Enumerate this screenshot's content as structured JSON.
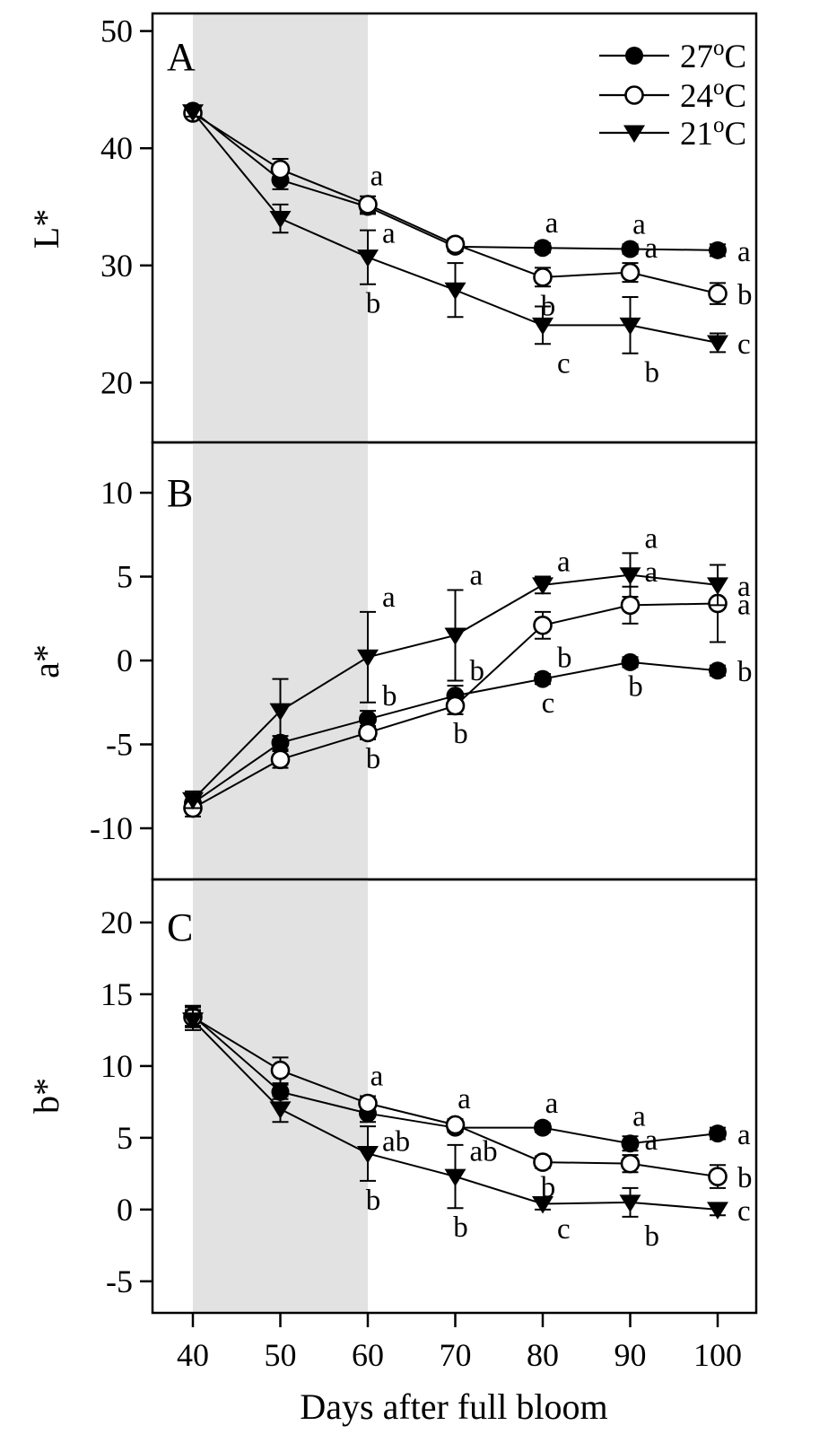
{
  "chart_data": {
    "type": "line",
    "title": "",
    "xlabel": "Days after full bloom",
    "x": [
      40,
      50,
      60,
      70,
      80,
      90,
      100
    ],
    "x_ticks": [
      40,
      50,
      60,
      70,
      80,
      90,
      100
    ],
    "grid": false,
    "shaded_x_band": {
      "from": 40,
      "to": 60,
      "color": "#e2e2e2"
    },
    "legend": {
      "position": "top-right of panel A",
      "entries": [
        "27°C",
        "24°C",
        "21°C"
      ]
    },
    "marker_color": "#000000",
    "panels": [
      {
        "label": "A",
        "ylabel": "L*",
        "yticks": [
          50,
          40,
          30,
          20
        ],
        "ylim": [
          14.9,
          51.5
        ],
        "series": [
          {
            "name": "27°C",
            "marker": "filled-circle",
            "values": [
              43.2,
              37.3,
              35.0,
              31.6,
              31.5,
              31.4,
              31.3
            ],
            "errors": [
              0.4,
              0.8,
              0.6,
              0.4,
              0.4,
              0.4,
              0.5
            ],
            "letters": [
              null,
              null,
              [
                "a",
                "below-right"
              ],
              null,
              [
                "a",
                "above"
              ],
              [
                "a",
                "above"
              ],
              [
                "a",
                "right"
              ]
            ]
          },
          {
            "name": "24°C",
            "marker": "open-circle",
            "values": [
              43.0,
              38.2,
              35.2,
              31.8,
              29.0,
              29.4,
              27.6
            ],
            "errors": [
              0.4,
              0.9,
              0.7,
              0.5,
              0.8,
              0.8,
              0.9
            ],
            "letters": [
              null,
              null,
              [
                "a",
                "above"
              ],
              null,
              [
                "b",
                "below"
              ],
              [
                "a",
                "above-right"
              ],
              [
                "b",
                "right"
              ]
            ]
          },
          {
            "name": "21°C",
            "marker": "filled-triangle-down",
            "values": [
              43.1,
              34.0,
              30.7,
              27.9,
              24.9,
              24.9,
              23.4
            ],
            "errors": [
              0.4,
              1.2,
              2.3,
              2.3,
              1.6,
              2.4,
              0.8
            ],
            "letters": [
              null,
              null,
              [
                "b",
                "below"
              ],
              null,
              [
                "c",
                "below-right"
              ],
              [
                "b",
                "below-right"
              ],
              [
                "c",
                "right"
              ]
            ]
          }
        ]
      },
      {
        "label": "B",
        "ylabel": "a*",
        "yticks": [
          10,
          5,
          0,
          -5,
          -10
        ],
        "ylim": [
          -13.05,
          13.0
        ],
        "series": [
          {
            "name": "27°C",
            "marker": "filled-circle",
            "values": [
              -8.5,
              -4.9,
              -3.5,
              -2.1,
              -1.1,
              -0.1,
              -0.6
            ],
            "errors": [
              0.4,
              0.4,
              0.5,
              0.6,
              0.3,
              0.3,
              0.3
            ],
            "letters": [
              null,
              null,
              [
                "b",
                "above-right"
              ],
              [
                "b",
                "above-right"
              ],
              [
                "c",
                "below"
              ],
              [
                "b",
                "below"
              ],
              [
                "b",
                "right"
              ]
            ]
          },
          {
            "name": "24°C",
            "marker": "open-circle",
            "values": [
              -8.8,
              -5.9,
              -4.3,
              -2.7,
              2.1,
              3.3,
              3.4
            ],
            "errors": [
              0.5,
              0.5,
              0.4,
              0.5,
              0.8,
              1.1,
              2.3
            ],
            "letters": [
              null,
              null,
              [
                "b",
                "below"
              ],
              [
                "b",
                "below"
              ],
              [
                "b",
                "below-right"
              ],
              [
                "a",
                "above-right"
              ],
              [
                "a",
                "right"
              ]
            ]
          },
          {
            "name": "21°C",
            "marker": "filled-triangle-down",
            "values": [
              -8.3,
              -3.0,
              0.2,
              1.5,
              4.5,
              5.1,
              4.5
            ],
            "errors": [
              0.5,
              1.9,
              2.7,
              2.7,
              0.5,
              1.3,
              1.2
            ],
            "letters": [
              null,
              null,
              [
                "a",
                "above-right"
              ],
              [
                "a",
                "above-right"
              ],
              [
                "a",
                "above-right"
              ],
              [
                "a",
                "above-right"
              ],
              [
                "a",
                "right"
              ]
            ]
          }
        ]
      },
      {
        "label": "C",
        "ylabel": "b*",
        "yticks": [
          20,
          15,
          10,
          5,
          0,
          -5
        ],
        "ylim": [
          -7.2,
          23.0
        ],
        "series": [
          {
            "name": "27°C",
            "marker": "filled-circle",
            "values": [
              13.5,
              8.2,
              6.7,
              5.7,
              5.7,
              4.6,
              5.3
            ],
            "errors": [
              0.7,
              0.5,
              0.6,
              0.3,
              0.3,
              0.5,
              0.4
            ],
            "letters": [
              null,
              null,
              [
                "ab",
                "below-right"
              ],
              [
                "ab",
                "below-right"
              ],
              [
                "a",
                "above"
              ],
              [
                "a",
                "above"
              ],
              [
                "a",
                "right"
              ]
            ]
          },
          {
            "name": "24°C",
            "marker": "open-circle",
            "values": [
              13.4,
              9.7,
              7.4,
              5.9,
              3.3,
              3.2,
              2.3
            ],
            "errors": [
              0.7,
              0.9,
              0.5,
              0.4,
              0.4,
              0.6,
              0.8
            ],
            "letters": [
              null,
              null,
              [
                "a",
                "above"
              ],
              [
                "a",
                "above"
              ],
              [
                "b",
                "below"
              ],
              [
                "a",
                "above-right"
              ],
              [
                "b",
                "right"
              ]
            ]
          },
          {
            "name": "21°C",
            "marker": "filled-triangle-down",
            "values": [
              13.2,
              7.0,
              3.9,
              2.3,
              0.4,
              0.5,
              0.0
            ],
            "errors": [
              0.7,
              0.9,
              1.9,
              2.2,
              0.4,
              1.0,
              0.4
            ],
            "letters": [
              null,
              null,
              [
                "b",
                "below"
              ],
              [
                "b",
                "below"
              ],
              [
                "c",
                "below-right"
              ],
              [
                "b",
                "below-right"
              ],
              [
                "c",
                "right"
              ]
            ]
          }
        ]
      }
    ],
    "legend_degree_mark": "o",
    "legend_unit": "C"
  }
}
